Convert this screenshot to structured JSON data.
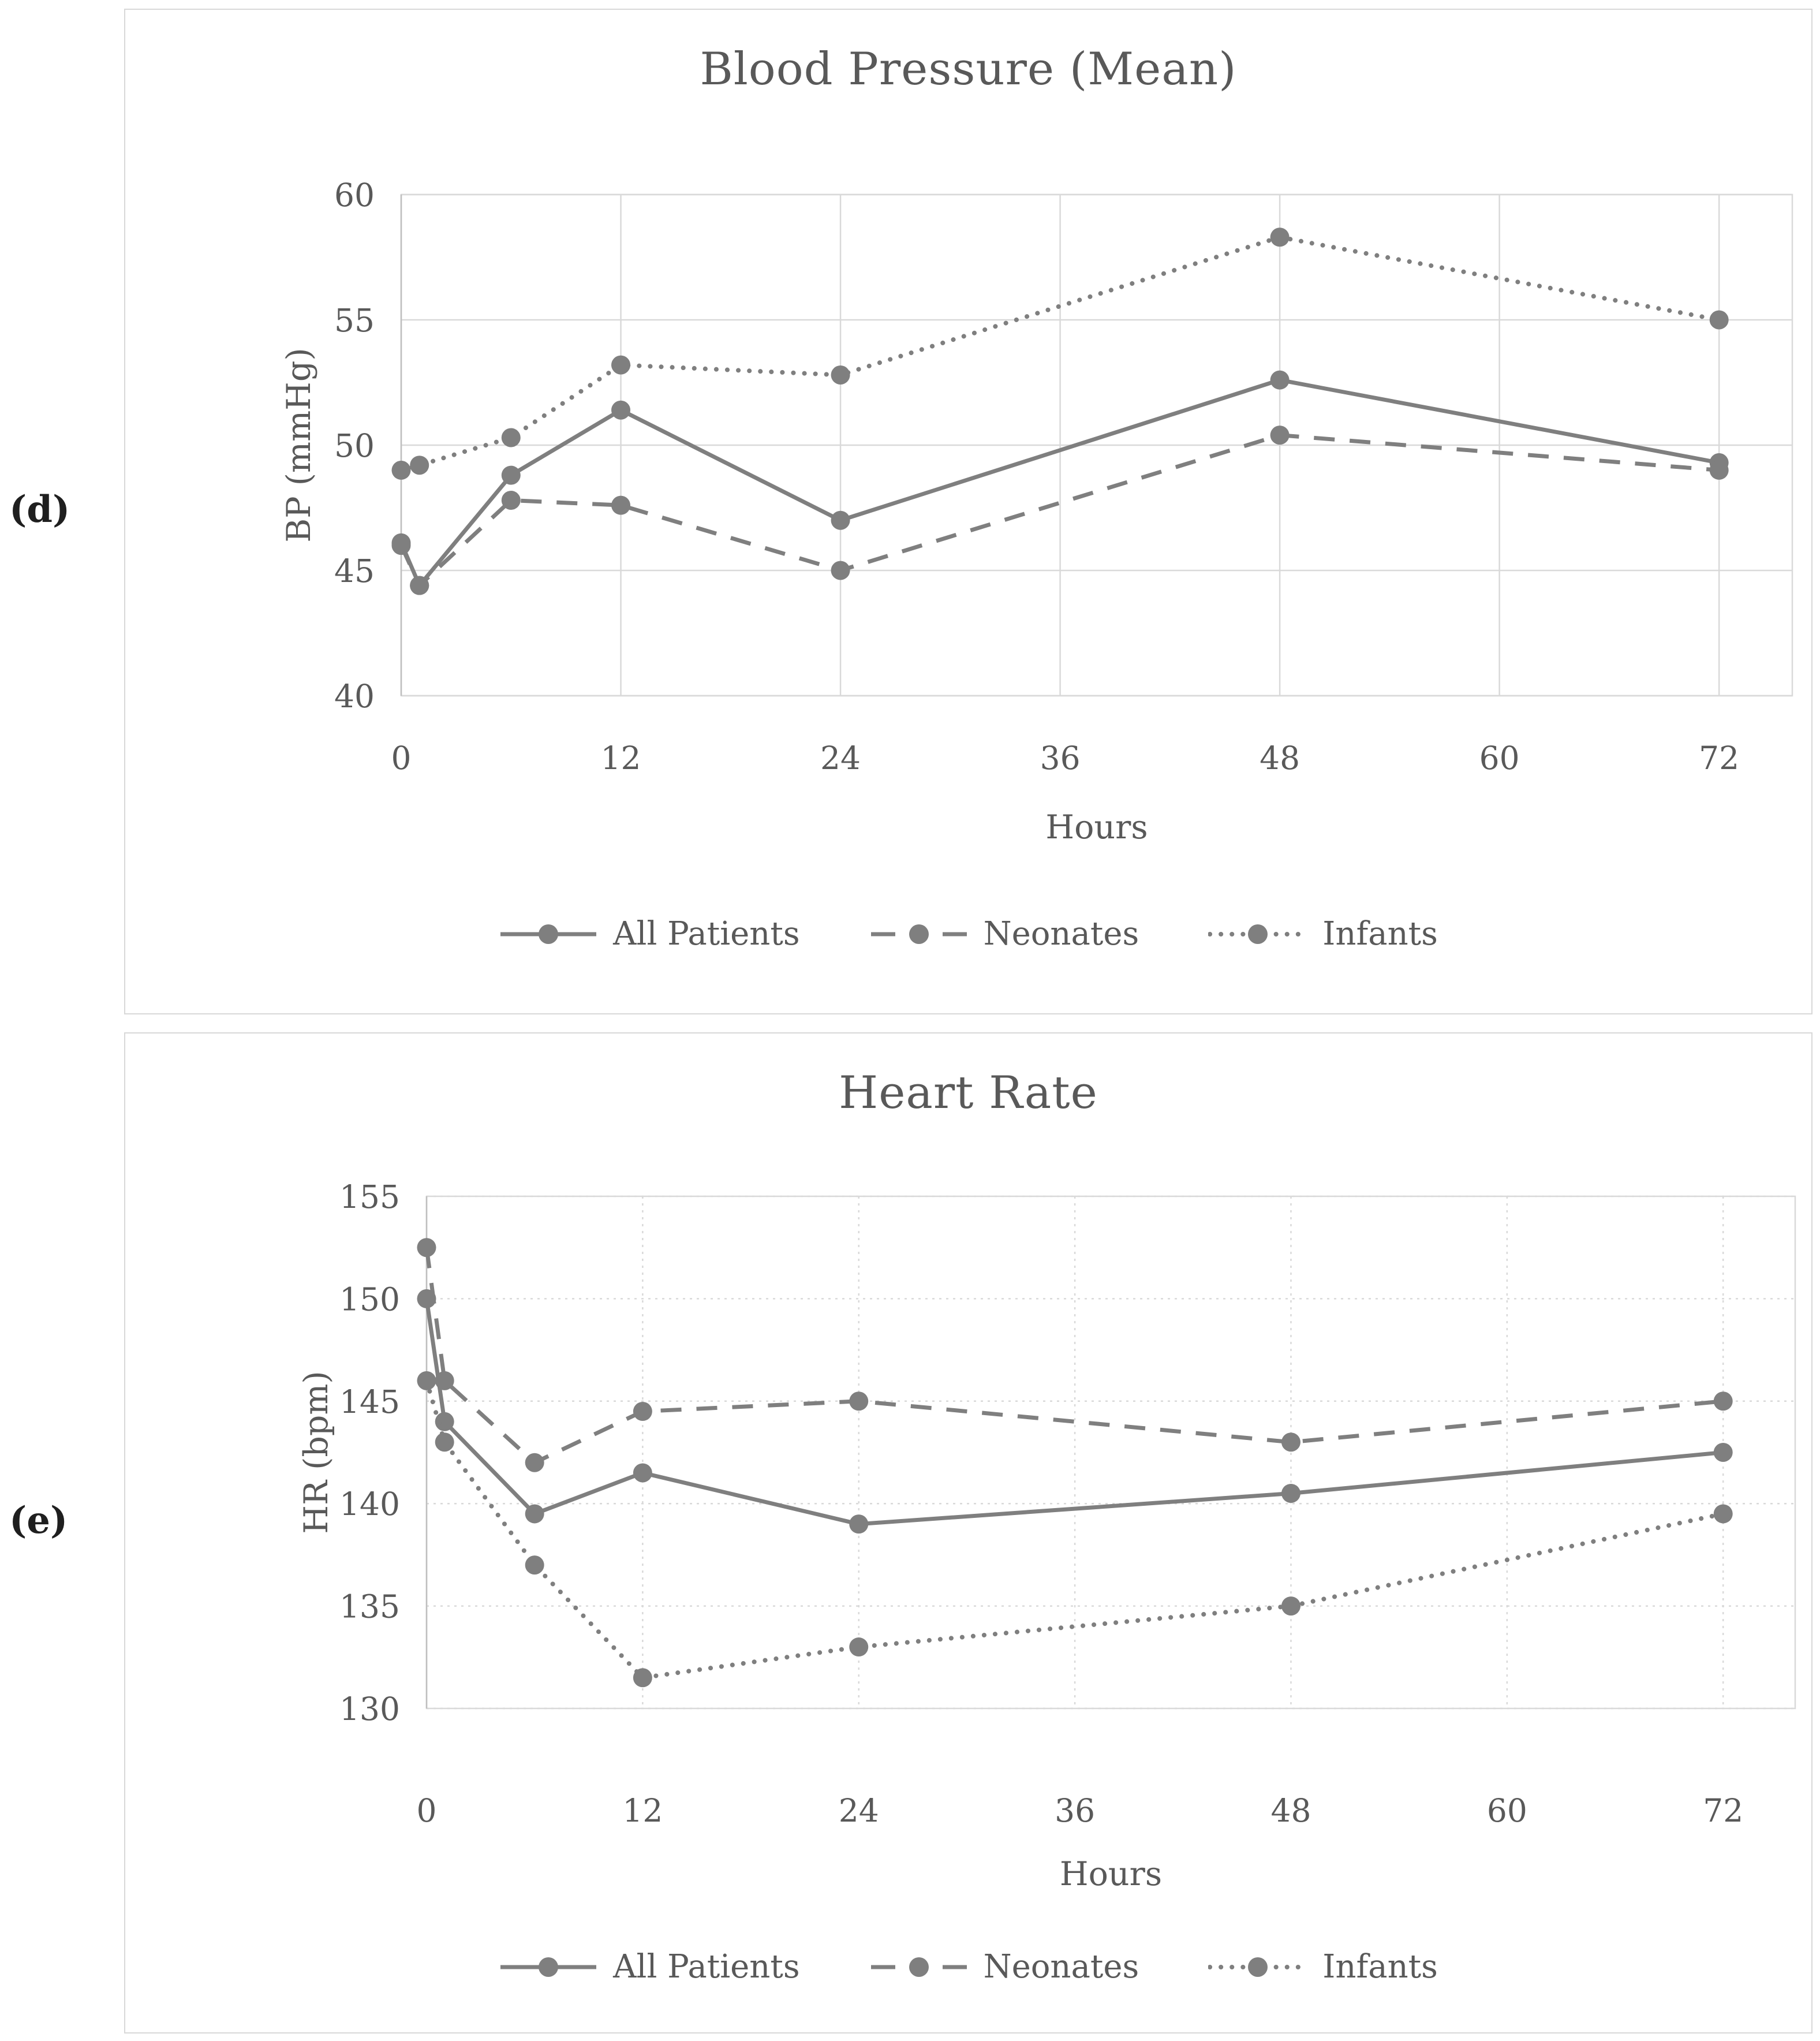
{
  "figure_labels": {
    "top": "(d)",
    "bottom": "(e)"
  },
  "colors": {
    "series_gray": "#7f7f7f",
    "text_gray": "#595959",
    "gridline_gray": "#d9d9d9"
  },
  "chart_data": [
    {
      "type": "line",
      "title": "Blood Pressure (Mean)",
      "xlabel": "Hours",
      "ylabel": "BP (mmHg)",
      "x": [
        0,
        1,
        6,
        12,
        24,
        48,
        72
      ],
      "xticks": [
        0,
        12,
        24,
        36,
        48,
        60,
        72
      ],
      "xlim": [
        0,
        76
      ],
      "yticks": [
        60,
        55,
        50,
        45,
        40
      ],
      "ylim": [
        40,
        60
      ],
      "grid": "solid",
      "legend_position": "bottom",
      "marker": "circle",
      "series": [
        {
          "name": "All Patients",
          "dash": "solid",
          "values": [
            46.1,
            44.4,
            48.8,
            51.4,
            47.0,
            52.6,
            49.3
          ]
        },
        {
          "name": "Neonates",
          "dash": "dashed",
          "values": [
            46.0,
            44.4,
            47.8,
            47.6,
            45.0,
            50.4,
            49.0
          ]
        },
        {
          "name": "Infants",
          "dash": "dotted",
          "values": [
            49.0,
            49.2,
            50.3,
            53.2,
            52.8,
            58.3,
            55.0
          ]
        }
      ]
    },
    {
      "type": "line",
      "title": "Heart Rate",
      "xlabel": "Hours",
      "ylabel": "HR (bpm)",
      "x": [
        0,
        1,
        6,
        12,
        24,
        48,
        72
      ],
      "xticks": [
        0,
        12,
        24,
        36,
        48,
        60,
        72
      ],
      "xlim": [
        0,
        76
      ],
      "yticks": [
        155,
        150,
        145,
        140,
        135,
        130
      ],
      "ylim": [
        130,
        155
      ],
      "grid": "dotted",
      "legend_position": "bottom",
      "marker": "circle",
      "series": [
        {
          "name": "All Patients",
          "dash": "solid",
          "values": [
            150.0,
            144.0,
            139.5,
            141.5,
            139.0,
            140.5,
            142.5
          ]
        },
        {
          "name": "Neonates",
          "dash": "dashed",
          "values": [
            152.5,
            146.0,
            142.0,
            144.5,
            145.0,
            143.0,
            145.0
          ]
        },
        {
          "name": "Infants",
          "dash": "dotted",
          "values": [
            146.0,
            143.0,
            137.0,
            131.5,
            133.0,
            135.0,
            139.5
          ]
        }
      ]
    }
  ]
}
